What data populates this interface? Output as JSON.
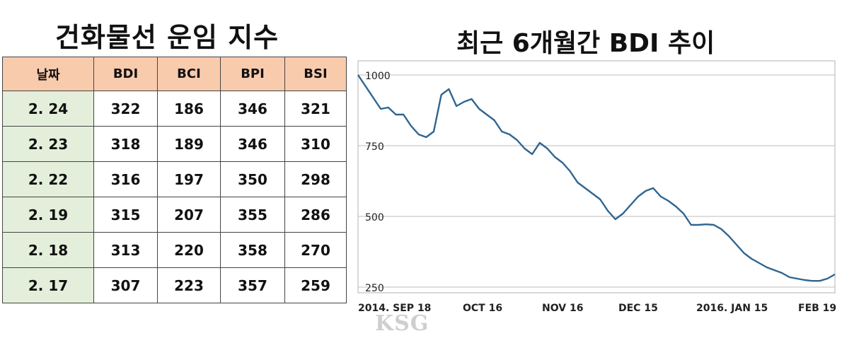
{
  "table": {
    "title": "건화물선 운임 지수",
    "headers": [
      "날짜",
      "BDI",
      "BCI",
      "BPI",
      "BSI"
    ],
    "rows": [
      [
        "2. 24",
        "322",
        "186",
        "346",
        "321"
      ],
      [
        "2. 23",
        "318",
        "189",
        "346",
        "310"
      ],
      [
        "2. 22",
        "316",
        "197",
        "350",
        "298"
      ],
      [
        "2. 19",
        "315",
        "207",
        "355",
        "286"
      ],
      [
        "2. 18",
        "313",
        "220",
        "358",
        "270"
      ],
      [
        "2. 17",
        "307",
        "223",
        "357",
        "259"
      ]
    ],
    "header_color": "#f9cbad",
    "date_color": "#e3efda"
  },
  "watermark": "KSG",
  "chart_data": {
    "type": "line",
    "title": "최근 6개월간 BDI 추이",
    "x_tick_labels": [
      "2014. SEP 18",
      "OCT 16",
      "NOV 16",
      "DEC 15",
      "2016. JAN 15",
      "FEB 19"
    ],
    "y_tick_labels": [
      "1000",
      "750",
      "500",
      "250"
    ],
    "ylim": [
      230,
      1050
    ],
    "grid": true,
    "line_color": "#2f6591",
    "series": [
      {
        "values": [
          1000,
          960,
          920,
          880,
          885,
          860,
          860,
          820,
          790,
          780,
          800,
          930,
          950,
          890,
          905,
          915,
          880,
          860,
          840,
          800,
          790,
          770,
          740,
          720,
          760,
          740,
          710,
          690,
          660,
          620,
          600,
          580,
          560,
          520,
          490,
          510,
          540,
          570,
          590,
          600,
          570,
          555,
          535,
          510,
          470,
          470,
          472,
          470,
          455,
          430,
          400,
          370,
          350,
          335,
          320,
          310,
          300,
          285,
          280,
          275,
          272,
          272,
          280,
          295
        ]
      }
    ]
  }
}
